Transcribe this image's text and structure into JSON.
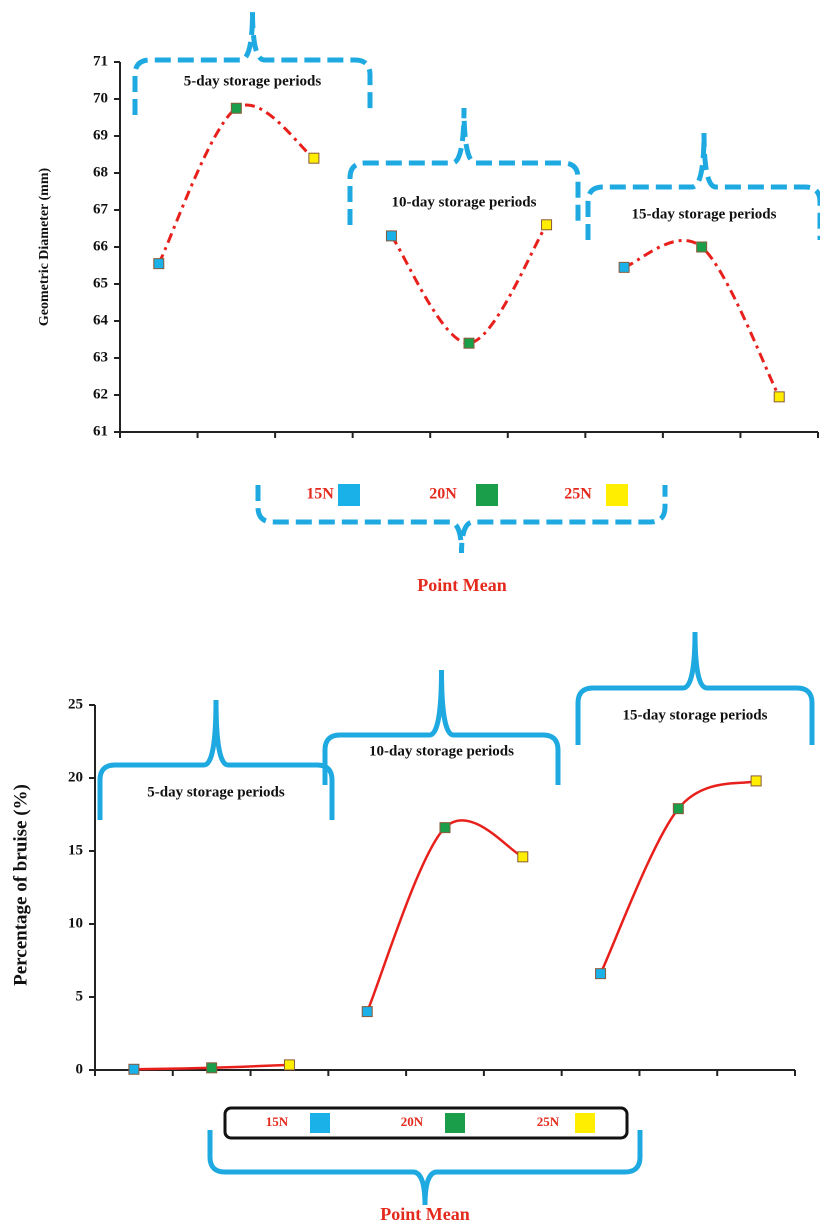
{
  "chart_data": [
    {
      "type": "line",
      "y_label": "Geometric Diameter (mm)",
      "legend_title": "Point Mean",
      "groups": [
        "5-day storage periods",
        "10-day storage periods",
        "15-day storage periods"
      ],
      "series": [
        {
          "name": "15N",
          "color": "#1ab0e8",
          "values": [
            65.55,
            66.3,
            65.45
          ]
        },
        {
          "name": "20N",
          "color": "#1a9e4a",
          "values": [
            69.75,
            63.4,
            66.0
          ]
        },
        {
          "name": "25N",
          "color": "#ffee00",
          "values": [
            68.4,
            66.6,
            61.95
          ]
        }
      ],
      "line_color": "#e8201c",
      "line_style": "dash-dot",
      "ylim": [
        61,
        71
      ],
      "yticks": [
        61,
        62,
        63,
        64,
        65,
        66,
        67,
        68,
        69,
        70,
        71
      ]
    },
    {
      "type": "line",
      "y_label": "Percentage of bruise (%)",
      "legend_title": "Point Mean",
      "groups": [
        "5-day storage periods",
        "10-day storage periods",
        "15-day storage periods"
      ],
      "series": [
        {
          "name": "15N",
          "color": "#1ab0e8",
          "values": [
            0.05,
            4.0,
            6.6
          ]
        },
        {
          "name": "20N",
          "color": "#1a9e4a",
          "values": [
            0.15,
            16.6,
            17.9
          ]
        },
        {
          "name": "25N",
          "color": "#ffee00",
          "values": [
            0.35,
            14.6,
            19.8
          ]
        }
      ],
      "line_color": "#e8201c",
      "line_style": "solid",
      "ylim": [
        0,
        25
      ],
      "yticks": [
        0,
        5,
        10,
        15,
        20,
        25
      ]
    }
  ]
}
